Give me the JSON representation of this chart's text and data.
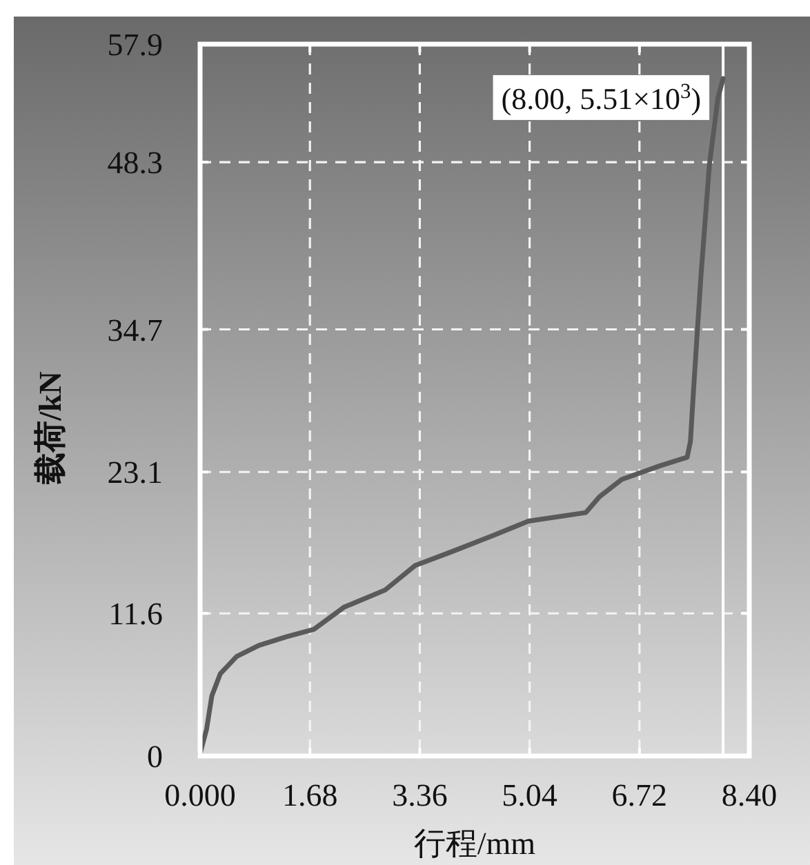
{
  "chart_data": {
    "type": "line",
    "xlabel": "行程/mm",
    "ylabel": "载荷/kN",
    "xlim": [
      0,
      8.4
    ],
    "ylim": [
      0,
      57.9
    ],
    "xticks": [
      {
        "value": 0,
        "label": "0.000"
      },
      1.68,
      3.36,
      5.04,
      6.72,
      {
        "value": 8.4,
        "label": "8.40"
      }
    ],
    "yticks": [
      0,
      11.6,
      23.1,
      34.7,
      48.3,
      57.9
    ],
    "grid": true,
    "marker": "none",
    "line_style": "solid",
    "series": [
      {
        "color": "#5a5a5a",
        "x": [
          0,
          0.1,
          0.18,
          0.31,
          0.56,
          0.9,
          1.32,
          1.74,
          2.2,
          2.83,
          3.29,
          3.84,
          4.51,
          5.02,
          5.9,
          6.11,
          6.45,
          7.03,
          7.45,
          7.5,
          7.55,
          7.66,
          7.79,
          7.92,
          8.0
        ],
        "values": [
          0.2,
          2.2,
          4.9,
          6.7,
          8.1,
          9.0,
          9.7,
          10.3,
          12.1,
          13.5,
          15.5,
          16.6,
          18.0,
          19.1,
          19.8,
          21.1,
          22.5,
          23.6,
          24.3,
          25.6,
          30.0,
          39.0,
          48.1,
          53.5,
          55.1
        ]
      }
    ],
    "ref_lines": [
      {
        "axis": "x",
        "value": 8.0,
        "color": "#ffffff",
        "line_style": "solid"
      }
    ],
    "annotations": [
      {
        "text": "(8.00, 5.51×10$^{3}$)",
        "x": 8.0,
        "y": 55.1
      }
    ]
  }
}
